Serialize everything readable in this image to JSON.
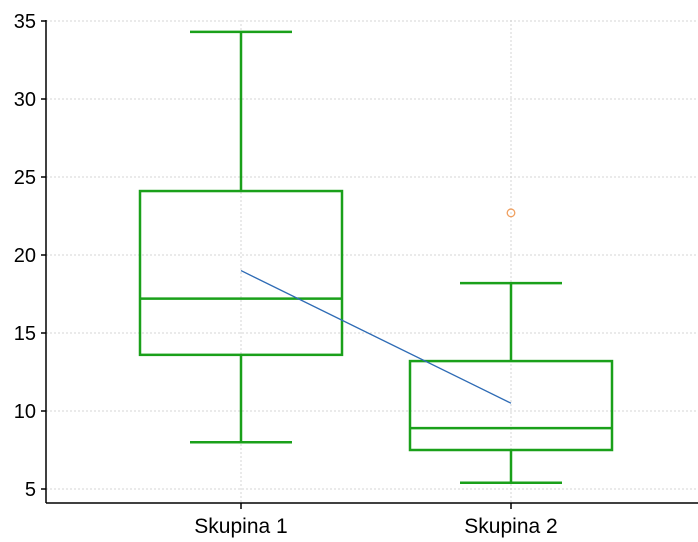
{
  "chart_data": {
    "type": "boxplot",
    "categories": [
      "Skupina 1",
      "Skupina 2"
    ],
    "ylim": [
      4.5,
      36
    ],
    "yticks": [
      5,
      10,
      15,
      20,
      25,
      30,
      35
    ],
    "ytick_labels": [
      "5",
      "10",
      "15",
      "20",
      "25",
      "30",
      "35"
    ],
    "grid": true,
    "boxes": [
      {
        "category": "Skupina 1",
        "whisker_low": 8.0,
        "q1": 13.6,
        "median": 17.2,
        "q3": 24.1,
        "whisker_high": 34.3,
        "mean": 19.0,
        "outliers": []
      },
      {
        "category": "Skupina 2",
        "whisker_low": 5.4,
        "q1": 7.5,
        "median": 8.9,
        "q3": 13.2,
        "whisker_high": 18.2,
        "mean": 10.5,
        "outliers": [
          22.7
        ]
      }
    ],
    "mean_line": true,
    "colors": {
      "box": "#1aa01a",
      "mean_line": "#2e6bb5",
      "outlier": "#f0a060",
      "grid": "#d4d4d4",
      "axis": "#000000"
    }
  }
}
